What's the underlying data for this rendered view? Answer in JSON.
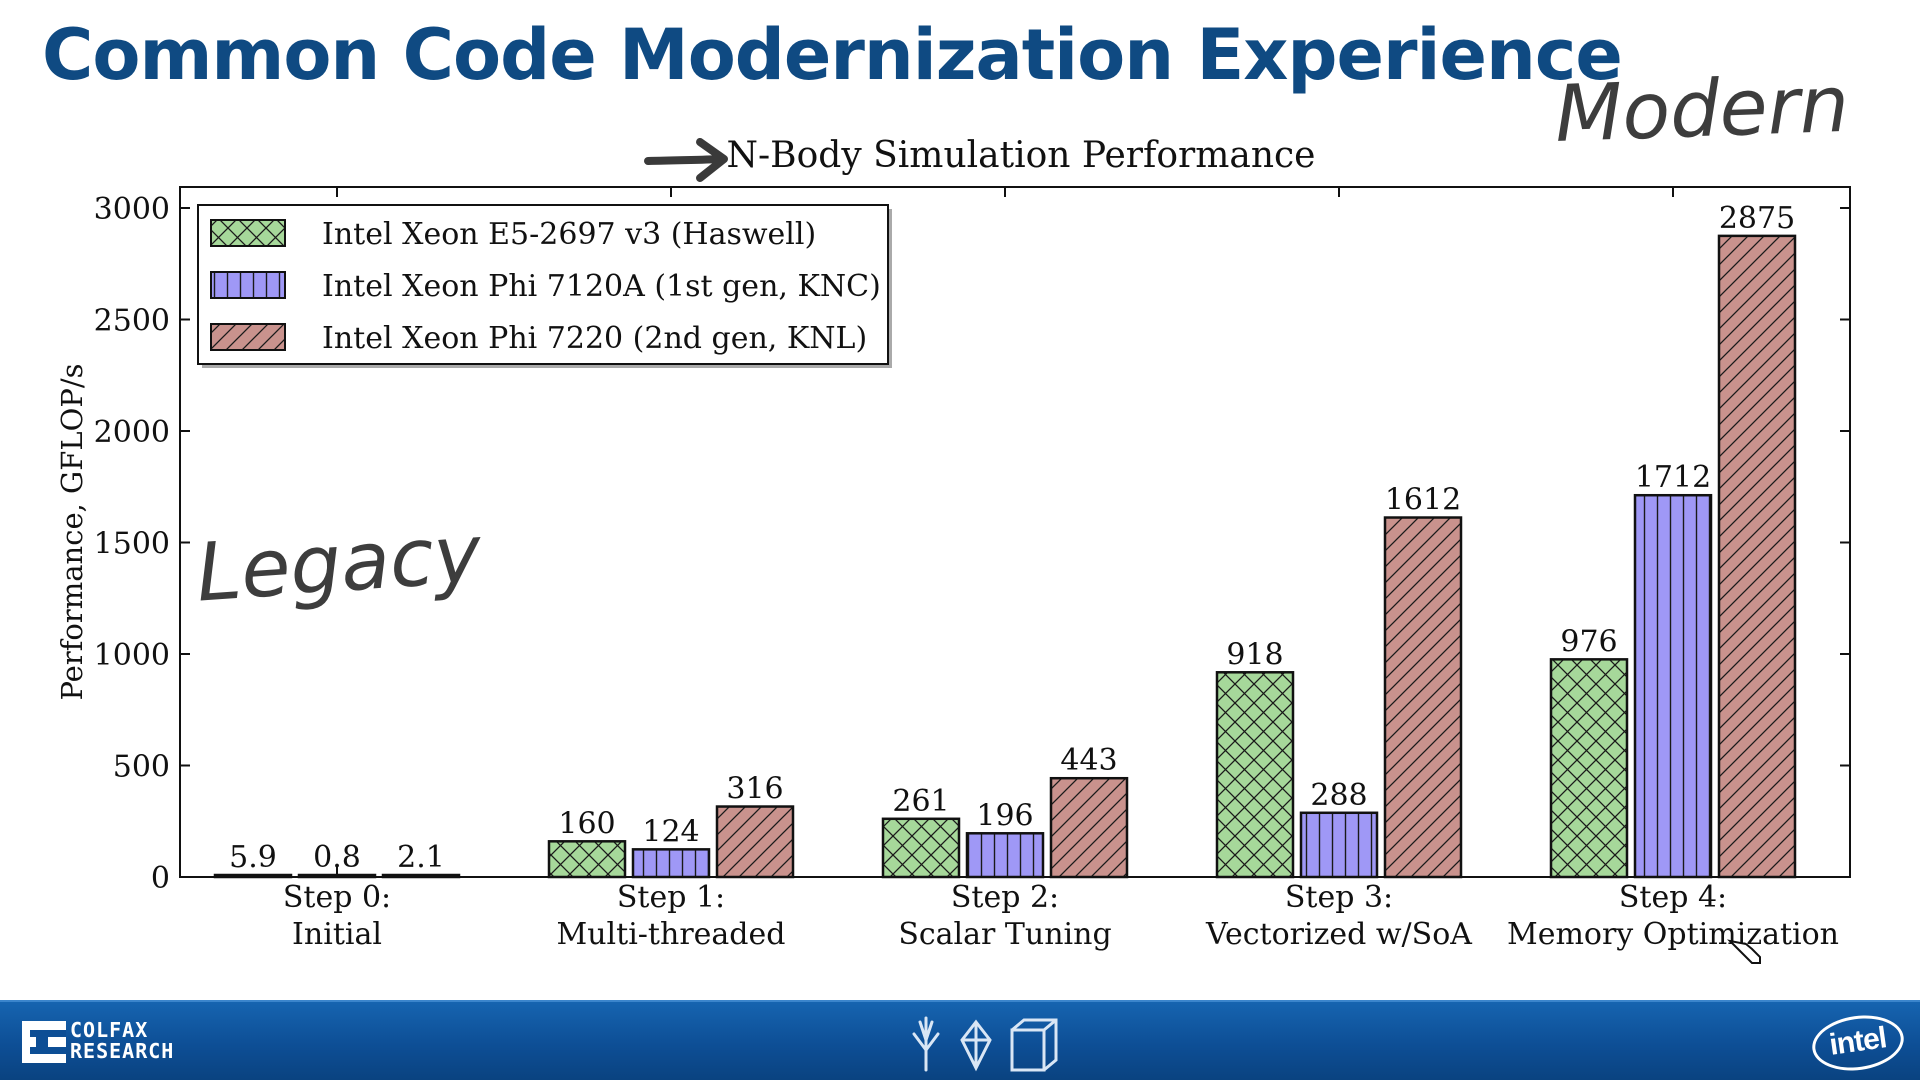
{
  "slide": {
    "title": "Common Code Modernization Experience",
    "annotations": {
      "top_right": "Modern",
      "left": "Legacy"
    }
  },
  "chart_data": {
    "type": "bar",
    "title": "N-Body Simulation Performance",
    "xlabel": "",
    "ylabel": "Performance, GFLOP/s",
    "ylim": [
      0,
      3000
    ],
    "yticks": [
      0,
      500,
      1000,
      1500,
      2000,
      2500,
      3000
    ],
    "grid": false,
    "legend_position": "top-left",
    "categories": [
      [
        "Step 0:",
        "Initial"
      ],
      [
        "Step 1:",
        "Multi-threaded"
      ],
      [
        "Step 2:",
        "Scalar Tuning"
      ],
      [
        "Step 3:",
        "Vectorized w/SoA"
      ],
      [
        "Step 4:",
        "Memory Optimization"
      ]
    ],
    "series": [
      {
        "name": "Intel Xeon E5-2697 v3 (Haswell)",
        "color": "#a6d89a",
        "hatch": "crosshatch",
        "values": [
          5.9,
          160,
          261,
          918,
          976
        ],
        "labels": [
          "5.9",
          "160",
          "261",
          "918",
          "976"
        ]
      },
      {
        "name": "Intel Xeon Phi 7120A (1st gen, KNC)",
        "color": "#9f98f6",
        "hatch": "vertical",
        "values": [
          0.8,
          124,
          196,
          288,
          1712
        ],
        "labels": [
          "0.8",
          "124",
          "196",
          "288",
          "1712"
        ]
      },
      {
        "name": "Intel Xeon Phi 7220 (2nd gen, KNL)",
        "color": "#c9928d",
        "hatch": "diagonal",
        "values": [
          2.1,
          316,
          443,
          1612,
          2875
        ],
        "labels": [
          "2.1",
          "316",
          "443",
          "1612",
          "2875"
        ]
      }
    ]
  },
  "footer": {
    "logo_left": [
      "COLFAX",
      "RESEARCH"
    ],
    "logo_right": "intel",
    "icons": [
      "tree-icon",
      "diamond-icon",
      "cube-icon"
    ]
  }
}
